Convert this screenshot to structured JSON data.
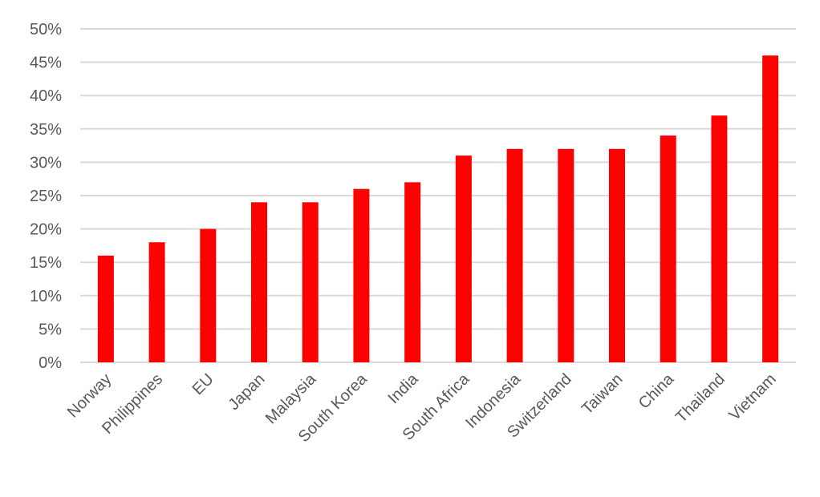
{
  "chart_data": {
    "type": "bar",
    "categories": [
      "Norway",
      "Philippines",
      "EU",
      "Japan",
      "Malaysia",
      "South Korea",
      "India",
      "South Africa",
      "Indonesia",
      "Switzerland",
      "Taiwan",
      "China",
      "Thailand",
      "Vietnam"
    ],
    "values": [
      16,
      18,
      20,
      24,
      24,
      26,
      27,
      31,
      32,
      32,
      32,
      34,
      37,
      46
    ],
    "value_format": "percent",
    "ylim": [
      0,
      50
    ],
    "yticks": [
      "0%",
      "5%",
      "10%",
      "15%",
      "20%",
      "25%",
      "30%",
      "35%",
      "40%",
      "45%",
      "50%"
    ],
    "title": "",
    "xlabel": "",
    "ylabel": "",
    "grid": true,
    "legend": "none",
    "colors": {
      "bar": "#ff0000",
      "grid": "#d9d9d9",
      "text": "#595959"
    }
  }
}
